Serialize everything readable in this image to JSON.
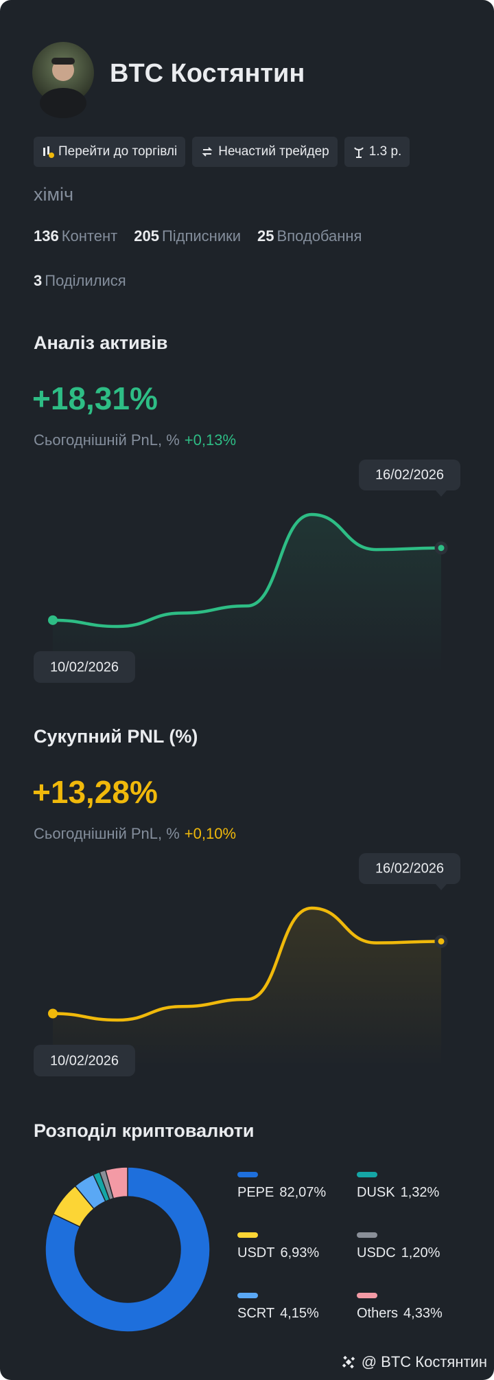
{
  "profile": {
    "name": "BTC Костянтин",
    "buttons": [
      "Перейти до торгівлі",
      "Нечастий трейдер",
      "1.3 р."
    ],
    "bio": "хіміч",
    "stats": [
      {
        "value": "136",
        "label": "Контент"
      },
      {
        "value": "205",
        "label": "Підписники"
      },
      {
        "value": "25",
        "label": "Вподобання"
      },
      {
        "value": "3",
        "label": "Поділилися"
      }
    ]
  },
  "chart_data": [
    {
      "type": "line",
      "title": "Аналіз активів",
      "headline": "+18,31%",
      "pnl_label": "Сьогоднішній PnL, %",
      "pnl_change": "+0,13%",
      "categories": [
        "10/02/2026",
        null,
        null,
        null,
        null,
        null,
        "16/02/2026"
      ],
      "values": [
        0,
        -1.6,
        1.8,
        3.6,
        26.8,
        17.9,
        18.31
      ],
      "color": "#2ebd85"
    },
    {
      "type": "line",
      "title": "Сукупний PNL (%)",
      "headline": "+13,28%",
      "pnl_label": "Сьогоднішній PnL, %",
      "pnl_change": "+0,10%",
      "categories": [
        "10/02/2026",
        null,
        null,
        null,
        null,
        null,
        "16/02/2026"
      ],
      "values": [
        0,
        -1.2,
        1.3,
        2.6,
        19.4,
        13.0,
        13.28
      ],
      "color": "#f0b90b"
    },
    {
      "type": "donut",
      "title": "Розподіл криптовалюти",
      "categories": [
        "PEPE",
        "USDT",
        "SCRT",
        "DUSK",
        "USDC",
        "Others"
      ],
      "values": [
        82.07,
        6.93,
        4.15,
        1.32,
        1.2,
        4.33
      ],
      "value_labels": [
        "82,07%",
        "6,93%",
        "4,15%",
        "1,32%",
        "1,20%",
        "4,33%"
      ],
      "colors": [
        "#1e6fdc",
        "#fcd535",
        "#5aa8f5",
        "#15a6a6",
        "#8a8f98",
        "#f39aa5"
      ]
    }
  ],
  "footer": "@ BTC Костянтин"
}
